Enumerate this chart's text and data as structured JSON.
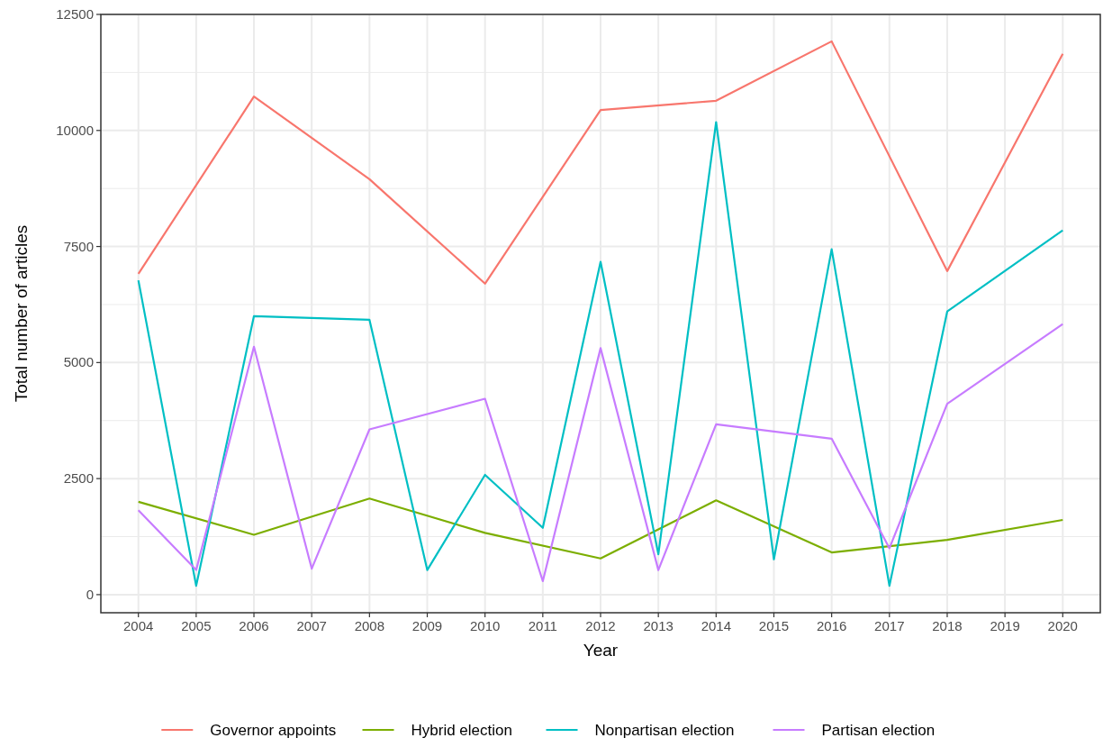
{
  "chart_data": {
    "type": "line",
    "xlabel": "Year",
    "ylabel": "Total number of articles",
    "xlim": [
      2003.35,
      2020.65
    ],
    "xticks": [
      2004,
      2005,
      2006,
      2007,
      2008,
      2009,
      2010,
      2011,
      2012,
      2013,
      2014,
      2015,
      2016,
      2017,
      2018,
      2019,
      2020
    ],
    "ylim": [
      -390,
      12500
    ],
    "yticks": [
      0,
      2500,
      5000,
      7500,
      10000,
      12500
    ],
    "grid": true,
    "legend": "bottom",
    "line_style": "solid",
    "marker": "none",
    "series": [
      {
        "name": "Governor appoints",
        "color": "#f8766d",
        "x": [
          2004,
          2006,
          2008,
          2010,
          2012,
          2014,
          2016,
          2018,
          2020
        ],
        "values": [
          6910,
          10730,
          8950,
          6700,
          10440,
          10640,
          11920,
          6970,
          11650
        ]
      },
      {
        "name": "Hybrid election",
        "color": "#7cae00",
        "x": [
          2004,
          2006,
          2008,
          2010,
          2012,
          2014,
          2016,
          2018,
          2020
        ],
        "values": [
          2000,
          1290,
          2070,
          1330,
          780,
          2030,
          910,
          1180,
          1610
        ]
      },
      {
        "name": "Nonpartisan election",
        "color": "#00bfc4",
        "x": [
          2004,
          2005,
          2006,
          2008,
          2009,
          2010,
          2011,
          2012,
          2013,
          2014,
          2015,
          2016,
          2017,
          2018,
          2020
        ],
        "values": [
          6770,
          190,
          6000,
          5920,
          530,
          2580,
          1440,
          7170,
          870,
          10180,
          760,
          7440,
          190,
          6100,
          7850
        ]
      },
      {
        "name": "Partisan election",
        "color": "#c77cff",
        "x": [
          2004,
          2005,
          2006,
          2007,
          2008,
          2010,
          2011,
          2012,
          2013,
          2014,
          2016,
          2017,
          2018,
          2020
        ],
        "values": [
          1820,
          530,
          5340,
          560,
          3560,
          4220,
          290,
          5310,
          530,
          3670,
          3360,
          1000,
          4110,
          5830
        ]
      }
    ]
  }
}
